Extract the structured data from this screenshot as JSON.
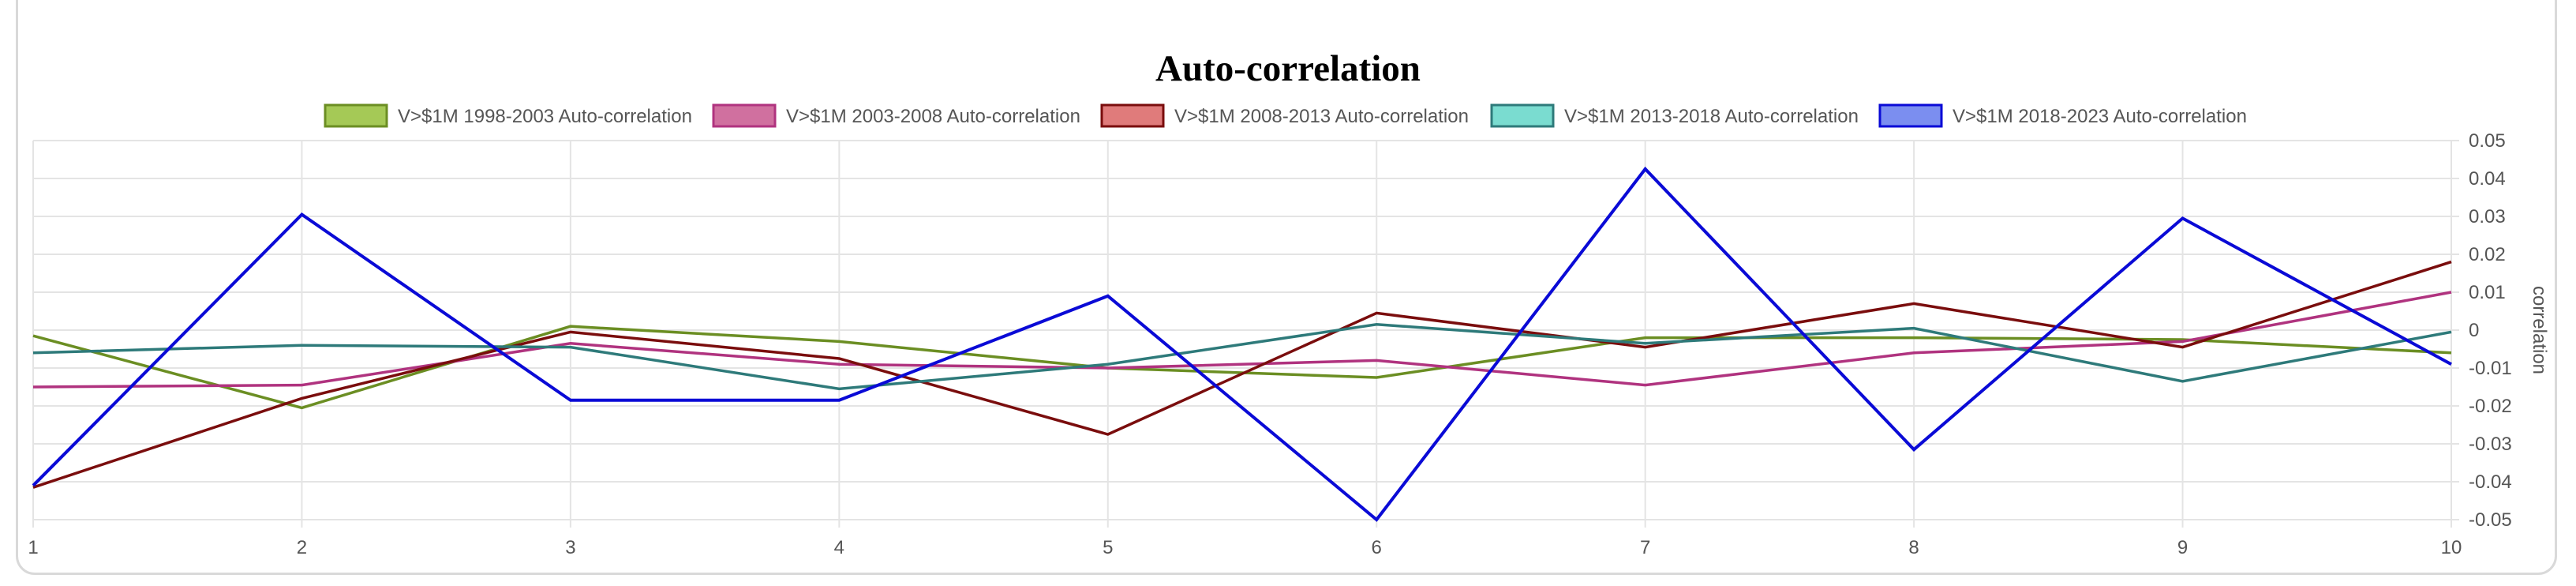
{
  "chart_data": {
    "type": "line",
    "title": "Auto-correlation",
    "xlabel": "",
    "ylabel": "correlation",
    "x": [
      1,
      2,
      3,
      4,
      5,
      6,
      7,
      8,
      9,
      10
    ],
    "ylim": [
      -0.05,
      0.05
    ],
    "yticks": [
      "0.05",
      "0.04",
      "0.03",
      "0.02",
      "0.01",
      "0",
      "-0.01",
      "-0.02",
      "-0.03",
      "-0.04",
      "-0.05"
    ],
    "grid": true,
    "legend_position": "top",
    "y_axis_side": "right",
    "series": [
      {
        "name": "V>$1M 1998-2003 Auto-correlation",
        "color": "#6b8e23",
        "fill": "#a5c956",
        "values": [
          -0.0015,
          -0.0205,
          0.001,
          -0.003,
          -0.01,
          -0.0125,
          -0.002,
          -0.002,
          -0.0025,
          -0.006
        ]
      },
      {
        "name": "V>$1M 2003-2008 Auto-correlation",
        "color": "#b0337f",
        "fill": "#d0709f",
        "values": [
          -0.015,
          -0.0145,
          -0.0035,
          -0.009,
          -0.01,
          -0.008,
          -0.0145,
          -0.006,
          -0.003,
          0.01
        ]
      },
      {
        "name": "V>$1M 2008-2013 Auto-correlation",
        "color": "#7a0d0d",
        "fill": "#e07b7b",
        "values": [
          -0.0415,
          -0.018,
          -0.0005,
          -0.0075,
          -0.0275,
          0.0045,
          -0.0045,
          0.007,
          -0.0045,
          0.018
        ]
      },
      {
        "name": "V>$1M 2013-2018 Auto-correlation",
        "color": "#2e7a7a",
        "fill": "#7adcd0",
        "values": [
          -0.006,
          -0.004,
          -0.0045,
          -0.0155,
          -0.009,
          0.0015,
          -0.0035,
          0.0005,
          -0.0135,
          -0.0005
        ]
      },
      {
        "name": "V>$1M 2018-2023 Auto-correlation",
        "color": "#0a0ad6",
        "fill": "#7b8ef0",
        "values": [
          -0.041,
          0.0305,
          -0.0185,
          -0.0185,
          0.009,
          -0.05,
          0.0425,
          -0.0315,
          0.0295,
          -0.009
        ]
      }
    ]
  }
}
